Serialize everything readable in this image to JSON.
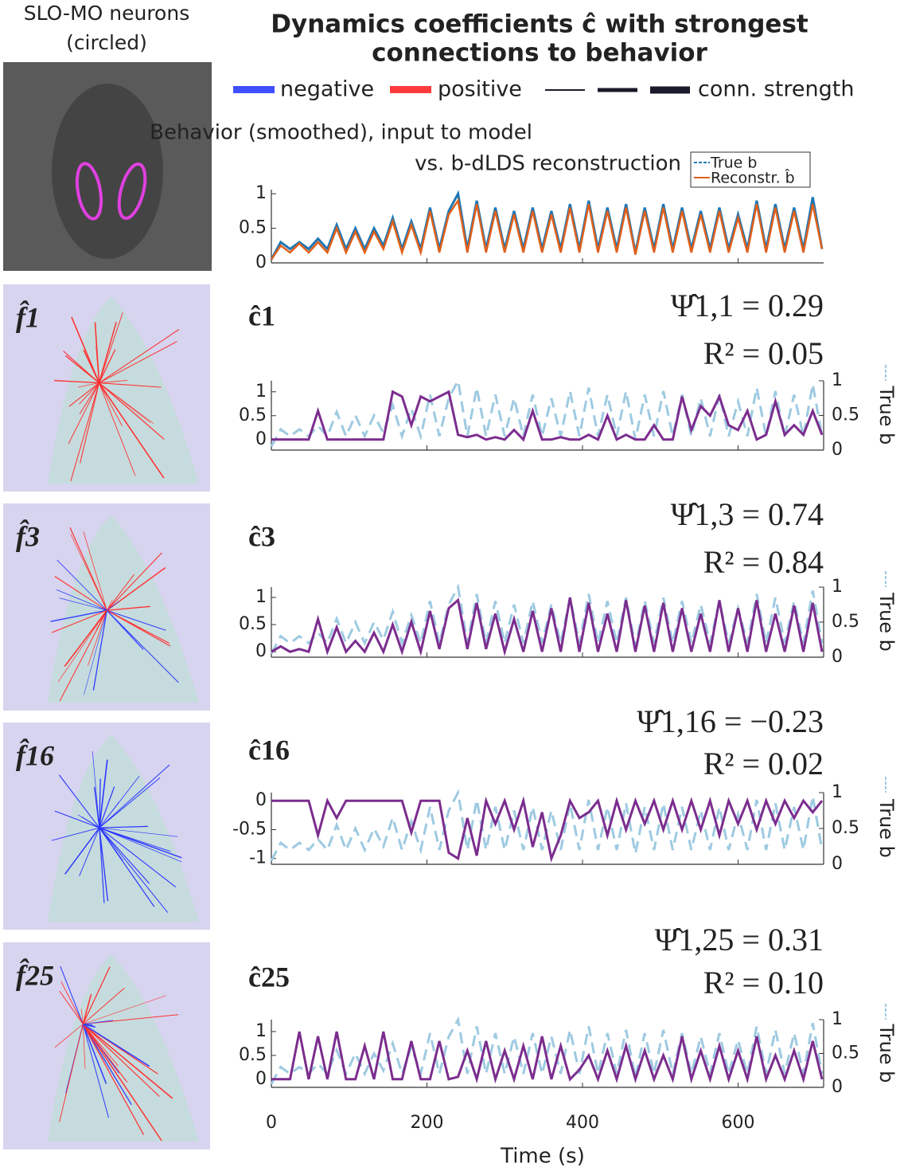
{
  "header": {
    "image_caption": [
      "SLO-MO neurons",
      "(circled)"
    ],
    "title": [
      "Dynamics coefficients ĉ with strongest",
      "connections to behavior"
    ],
    "legend": [
      {
        "label": "negative",
        "color": "#3f4fff"
      },
      {
        "label": "positive",
        "color": "#ff3b3b"
      },
      {
        "label": "conn. strength",
        "color": "#1a1a2a"
      }
    ]
  },
  "chart_data": [
    {
      "type": "line",
      "title": [
        "Behavior (smoothed), input to model",
        "vs. b-dLDS reconstruction"
      ],
      "x": [
        0,
        12,
        24,
        36,
        48,
        60,
        72,
        84,
        96,
        108,
        120,
        132,
        144,
        156,
        168,
        180,
        192,
        204,
        216,
        228,
        240,
        252,
        264,
        276,
        288,
        300,
        312,
        324,
        336,
        348,
        360,
        372,
        384,
        396,
        408,
        420,
        432,
        444,
        456,
        468,
        480,
        492,
        504,
        516,
        528,
        540,
        552,
        564,
        576,
        588,
        600,
        612,
        624,
        636,
        648,
        660,
        672,
        684,
        696,
        708
      ],
      "xlim": [
        0,
        710
      ],
      "ylim": [
        0,
        1.06
      ],
      "yticks": [
        0,
        0.5,
        1
      ],
      "series": [
        {
          "name": "True b",
          "color": "#1f77b4",
          "values": [
            0.05,
            0.3,
            0.2,
            0.3,
            0.2,
            0.35,
            0.2,
            0.55,
            0.2,
            0.5,
            0.2,
            0.5,
            0.25,
            0.65,
            0.2,
            0.6,
            0.2,
            0.8,
            0.2,
            0.75,
            1.0,
            0.2,
            0.9,
            0.2,
            0.8,
            0.2,
            0.75,
            0.2,
            0.8,
            0.2,
            0.75,
            0.2,
            0.85,
            0.2,
            0.9,
            0.2,
            0.8,
            0.2,
            0.85,
            0.15,
            0.8,
            0.2,
            0.85,
            0.2,
            0.8,
            0.2,
            0.75,
            0.2,
            0.8,
            0.2,
            0.7,
            0.2,
            0.9,
            0.2,
            0.85,
            0.2,
            0.8,
            0.2,
            0.95,
            0.2
          ]
        },
        {
          "name": "Reconstr. b̂",
          "color": "#e0601a",
          "values": [
            0.05,
            0.25,
            0.15,
            0.28,
            0.15,
            0.3,
            0.15,
            0.5,
            0.15,
            0.45,
            0.15,
            0.45,
            0.2,
            0.6,
            0.15,
            0.55,
            0.15,
            0.75,
            0.15,
            0.7,
            0.9,
            0.15,
            0.85,
            0.15,
            0.75,
            0.15,
            0.7,
            0.15,
            0.75,
            0.15,
            0.7,
            0.15,
            0.8,
            0.15,
            0.85,
            0.15,
            0.75,
            0.15,
            0.8,
            0.12,
            0.75,
            0.15,
            0.8,
            0.15,
            0.75,
            0.15,
            0.7,
            0.15,
            0.75,
            0.15,
            0.65,
            0.15,
            0.85,
            0.15,
            0.8,
            0.15,
            0.75,
            0.15,
            0.85,
            0.2
          ]
        }
      ]
    },
    {
      "type": "line",
      "image_label": "f̂1",
      "label": "ĉ1",
      "annotations": [
        "Ψ̂1,1 = 0.29",
        "R² = 0.05"
      ],
      "color": "#7b2d8e",
      "ylim": [
        -0.22,
        1.23
      ],
      "yticks": [
        0,
        0.5,
        1
      ],
      "y2lim": [
        0,
        1
      ],
      "y2ticks": [
        0,
        0.5,
        1
      ],
      "y2label": "True b",
      "values": [
        0,
        0,
        0,
        0,
        0,
        0.6,
        0,
        0,
        0,
        0,
        0,
        0,
        0,
        1.0,
        0.9,
        0.3,
        0.9,
        0.8,
        0.9,
        1.0,
        0.1,
        0.05,
        0.1,
        0,
        0.05,
        0,
        0.2,
        0,
        0.6,
        0,
        0,
        0.05,
        0,
        0,
        0.1,
        0,
        0.5,
        0,
        0.1,
        0,
        0,
        0.3,
        0,
        0,
        0.9,
        0.2,
        0.7,
        0.5,
        0.9,
        0.3,
        0.2,
        0.6,
        0,
        0.1,
        0.8,
        0.1,
        0.3,
        0.1,
        0.6,
        0.1
      ]
    },
    {
      "type": "line",
      "image_label": "f̂3",
      "label": "ĉ3",
      "annotations": [
        "Ψ̂1,3 = 0.74",
        "R² = 0.84"
      ],
      "color": "#7b2d8e",
      "ylim": [
        -0.1,
        1.19
      ],
      "yticks": [
        0,
        0.5,
        1
      ],
      "y2lim": [
        0,
        1
      ],
      "y2ticks": [
        0,
        0.5,
        1
      ],
      "y2label": "True b",
      "values": [
        0,
        0.1,
        0,
        0.05,
        0,
        0.6,
        0,
        0.45,
        0,
        0.2,
        0,
        0.35,
        0,
        0.5,
        0,
        0.55,
        0,
        0.75,
        0.05,
        0.8,
        0.95,
        0.05,
        0.9,
        0.05,
        0.7,
        0,
        0.6,
        0,
        0.75,
        0,
        0.8,
        0,
        1.0,
        0,
        0.9,
        0,
        0.7,
        0,
        0.95,
        0,
        0.85,
        0,
        0.9,
        0,
        0.8,
        0,
        0.7,
        0,
        0.95,
        0,
        0.8,
        0,
        0.95,
        0,
        0.7,
        0,
        0.85,
        0,
        0.9,
        0
      ]
    },
    {
      "type": "line",
      "image_label": "f̂16",
      "label": "ĉ16",
      "annotations": [
        "Ψ̂1,16 = −0.23",
        "R² = 0.02"
      ],
      "color": "#7b2d8e",
      "ylim": [
        -1.1,
        0.14
      ],
      "yticks": [
        -1,
        -0.5,
        0
      ],
      "y2lim": [
        0,
        1
      ],
      "y2ticks": [
        0,
        0.5,
        1
      ],
      "y2label": "True b",
      "values": [
        0,
        0,
        0,
        0,
        0,
        -0.6,
        0,
        -0.3,
        0,
        0,
        0,
        0,
        0,
        0,
        0,
        -0.55,
        0,
        0,
        0,
        -0.9,
        -1.0,
        -0.3,
        -0.95,
        0,
        -0.4,
        0,
        -0.5,
        0,
        -0.8,
        -0.2,
        -1.0,
        -0.6,
        0,
        -0.3,
        -0.2,
        0,
        -0.6,
        0,
        -0.5,
        0,
        -0.4,
        0,
        -0.5,
        0,
        -0.5,
        0,
        -0.5,
        0,
        -0.6,
        0,
        -0.4,
        0,
        -0.5,
        0,
        -0.4,
        0,
        -0.3,
        0,
        -0.2,
        0
      ]
    },
    {
      "type": "line",
      "image_label": "f̂25",
      "label": "ĉ25",
      "annotations": [
        "Ψ̂1,25 = 0.31",
        "R² = 0.10"
      ],
      "color": "#7b2d8e",
      "ylim": [
        -0.17,
        1.25
      ],
      "yticks": [
        0,
        0.5,
        1
      ],
      "y2lim": [
        0,
        1
      ],
      "y2ticks": [
        0,
        0.5,
        1
      ],
      "y2label": "True b",
      "xlim": [
        0,
        710
      ],
      "xticks": [
        0,
        200,
        400,
        600
      ],
      "xlabel": "Time (s)",
      "values": [
        0,
        0,
        0,
        1.0,
        0,
        0.9,
        0,
        1.0,
        0,
        0,
        0.7,
        0,
        1.0,
        0,
        0,
        0.8,
        0,
        0,
        0.8,
        0,
        0.05,
        0.6,
        0,
        0.8,
        0,
        0.6,
        0,
        0.7,
        0,
        0.9,
        0,
        0.7,
        0,
        0.2,
        0.5,
        0,
        0.6,
        0,
        0.7,
        0,
        0.6,
        0,
        0.5,
        0,
        0.9,
        0,
        0.6,
        0,
        0.7,
        0,
        0.6,
        0,
        0.9,
        0,
        0.5,
        0,
        0.6,
        0,
        0.8,
        0
      ]
    }
  ]
}
